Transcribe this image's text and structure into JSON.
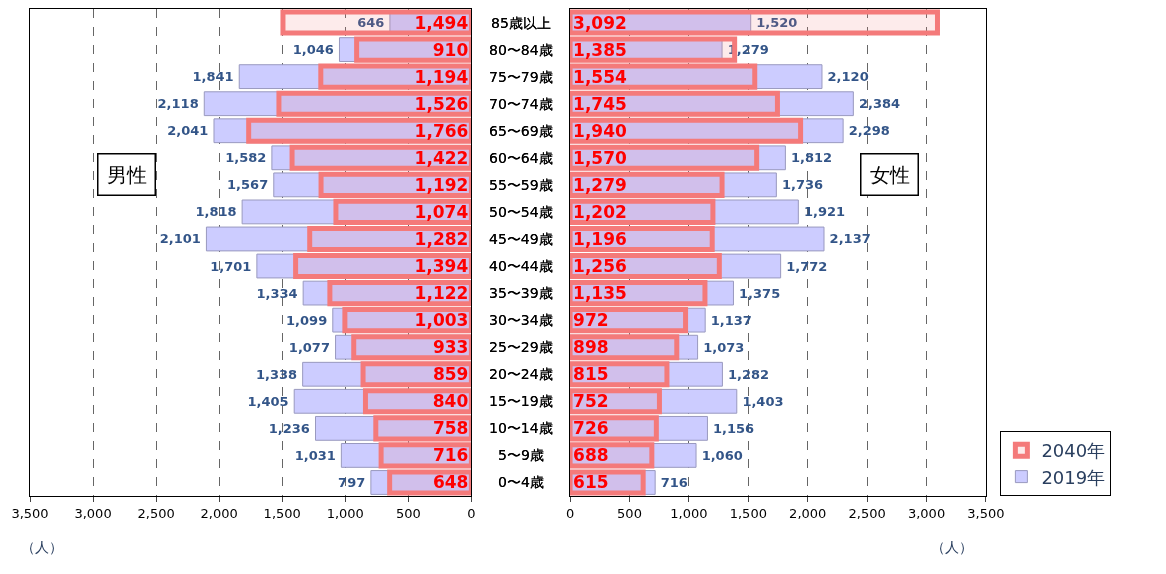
{
  "chart_data": [
    {
      "type": "bar",
      "orientation": "horizontal",
      "xlabel": "（人）",
      "annotations": [
        "男性"
      ],
      "categories": [
        "85歳以上",
        "80〜84歳",
        "75〜79歳",
        "70〜74歳",
        "65〜69歳",
        "60〜64歳",
        "55〜59歳",
        "50〜54歳",
        "45〜49歳",
        "40〜44歳",
        "35〜39歳",
        "30〜34歳",
        "25〜29歳",
        "20〜24歳",
        "15〜19歳",
        "10〜14歳",
        "5〜9歳",
        "0〜4歳"
      ],
      "series": [
        {
          "name": "2040年",
          "color": "#f47a7a",
          "values": [
            1494,
            910,
            1194,
            1526,
            1766,
            1422,
            1192,
            1074,
            1282,
            1394,
            1122,
            1003,
            933,
            859,
            840,
            758,
            716,
            648
          ],
          "value_labels": [
            "1,494",
            "910",
            "1,194",
            "1,526",
            "1,766",
            "1,422",
            "1,192",
            "1,074",
            "1,282",
            "1,394",
            "1,122",
            "1,003",
            "933",
            "859",
            "840",
            "758",
            "716",
            "648"
          ]
        },
        {
          "name": "2019年",
          "color": "#ccccff",
          "values": [
            646,
            1046,
            1841,
            2118,
            2041,
            1582,
            1567,
            1818,
            2101,
            1701,
            1334,
            1099,
            1077,
            1338,
            1405,
            1236,
            1031,
            797
          ],
          "value_labels": [
            "646",
            "1,046",
            "1,841",
            "2,118",
            "2,041",
            "1,582",
            "1,567",
            "1,818",
            "2,101",
            "1,701",
            "1,334",
            "1,099",
            "1,077",
            "1,338",
            "1,405",
            "1,236",
            "1,031",
            "797"
          ]
        }
      ],
      "xlim": [
        3500,
        0
      ],
      "xticks": [
        {
          "value": 3500,
          "label": "3,500"
        },
        {
          "value": 3000,
          "label": "3,000"
        },
        {
          "value": 2500,
          "label": "2,500"
        },
        {
          "value": 2000,
          "label": "2,000"
        },
        {
          "value": 1500,
          "label": "1,500"
        },
        {
          "value": 1000,
          "label": "1,000"
        },
        500,
        0
      ],
      "grid": "x",
      "tick_labels": "x",
      "legend": "bottom right"
    },
    {
      "type": "bar",
      "orientation": "horizontal",
      "xlabel": "（人）",
      "annotations": [
        "女性"
      ],
      "categories": [
        "85歳以上",
        "80〜84歳",
        "75〜79歳",
        "70〜74歳",
        "65〜69歳",
        "60〜64歳",
        "55〜59歳",
        "50〜54歳",
        "45〜49歳",
        "40〜44歳",
        "35〜39歳",
        "30〜34歳",
        "25〜29歳",
        "20〜24歳",
        "15〜19歳",
        "10〜14歳",
        "5〜9歳",
        "0〜4歳"
      ],
      "series": [
        {
          "color": "#f47a7a",
          "values": [
            3092,
            1385,
            1554,
            1745,
            1940,
            1570,
            1279,
            1202,
            1196,
            1256,
            1135,
            972,
            898,
            815,
            752,
            726,
            688,
            615
          ],
          "value_labels": [
            "3,092",
            "1,385",
            "1,554",
            "1,745",
            "1,940",
            "1,570",
            "1,279",
            "1,202",
            "1,196",
            "1,256",
            "1,135",
            "972",
            "898",
            "815",
            "752",
            "726",
            "688",
            "615"
          ]
        },
        {
          "color": "#ccccff",
          "values": [
            1520,
            1279,
            2120,
            2384,
            2298,
            1812,
            1736,
            1921,
            2137,
            1772,
            1375,
            1137,
            1073,
            1282,
            1403,
            1156,
            1060,
            716
          ],
          "value_labels": [
            "1,520",
            "1,279",
            "2,120",
            "2,384",
            "2,298",
            "1,812",
            "1,736",
            "1,921",
            "2,137",
            "1,772",
            "1,375",
            "1,137",
            "1,073",
            "1,282",
            "1,403",
            "1,156",
            "1,060",
            "716"
          ]
        }
      ],
      "xlim": [
        0,
        3500
      ],
      "xticks": [
        0,
        500,
        {
          "value": 1000,
          "label": "1,000"
        },
        {
          "value": 1500,
          "label": "1,500"
        },
        {
          "value": 2000,
          "label": "2,000"
        },
        {
          "value": 2500,
          "label": "2,500"
        },
        {
          "value": 3000,
          "label": "3,000"
        },
        {
          "value": 3500,
          "label": "3,500"
        }
      ],
      "grid": "x",
      "tick_labels": "x"
    }
  ]
}
